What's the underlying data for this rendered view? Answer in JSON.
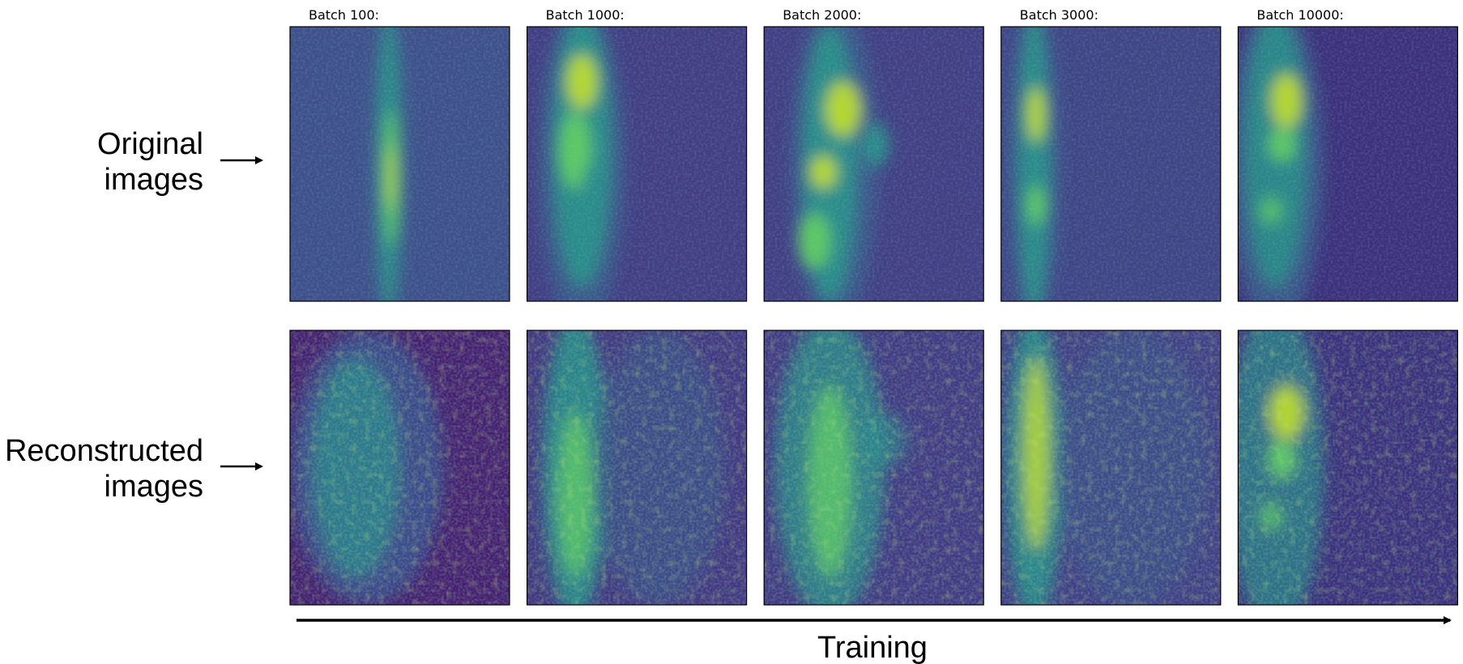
{
  "panel_titles": [
    "Batch 100:",
    "Batch 1000:",
    "Batch 2000:",
    "Batch 3000:",
    "Batch 10000:"
  ],
  "row_labels": [
    [
      "Original",
      "images"
    ],
    [
      "Reconstructed",
      "images"
    ]
  ],
  "arrow_label": "Training"
}
